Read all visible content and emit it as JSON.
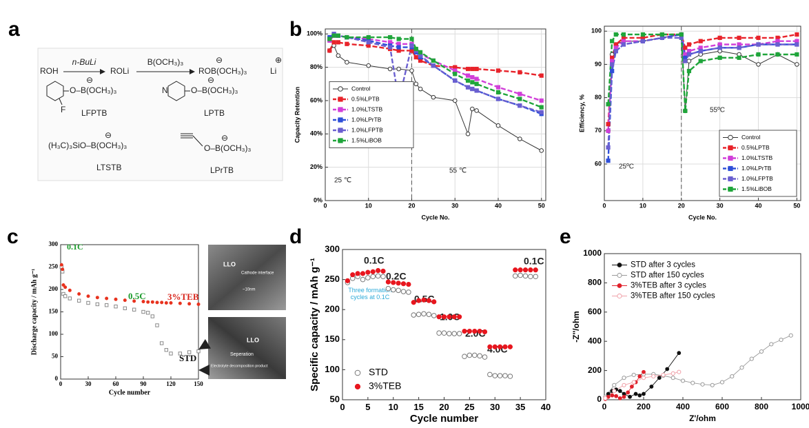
{
  "panel_labels": [
    "a",
    "b",
    "c",
    "d",
    "e"
  ],
  "scheme": {
    "reaction": [
      "ROH",
      "n-BuLi",
      "ROLi",
      "B(OCH₃)₃",
      "ROB(OCH₃)₃",
      "Li"
    ],
    "minus": "⊖",
    "plus": "⊕",
    "ring_atoms": [
      "F",
      "N"
    ],
    "compounds": [
      {
        "formula": "O–B(OCH₃)₃",
        "name": "LFPTB"
      },
      {
        "formula": "O–B(OCH₃)₃",
        "name": "LPTB"
      },
      {
        "formula": "(H₃C)₃SiO–B(OCH₃)₃",
        "name": "LTSTB"
      },
      {
        "formula": "O–B(OCH₃)₃",
        "name": "LPrTB"
      }
    ]
  },
  "tem_images": [
    {
      "labels": [
        "LLO",
        "Cathode interface",
        "~10nm"
      ]
    },
    {
      "labels": [
        "LLO",
        "Seperation",
        "Electrolyte decomposition product"
      ]
    }
  ],
  "chart_data": [
    {
      "type": "line",
      "xlabel": "Cycle No.",
      "ylabel": "Capacity Retention",
      "xlim": [
        0,
        51
      ],
      "ylim": [
        0,
        103
      ],
      "xticks": [
        0,
        10,
        20,
        30,
        40,
        50
      ],
      "yticks": [
        {
          "value": 0,
          "label": "0%"
        },
        {
          "value": 20,
          "label": "20%"
        },
        {
          "value": 40,
          "label": "40%"
        },
        {
          "value": 60,
          "label": "60%"
        },
        {
          "value": 80,
          "label": "80%"
        },
        {
          "value": 100,
          "label": "100%"
        }
      ],
      "grid": true,
      "vline": 20,
      "legend": "center left",
      "annotations": [
        "25 ℃",
        "55 ℃"
      ],
      "x": [
        1,
        2,
        3,
        5,
        10,
        15,
        17,
        20,
        21,
        22,
        25,
        30,
        33,
        34,
        35,
        40,
        45,
        50
      ],
      "series": [
        {
          "name": "Control",
          "color": "#333333",
          "marker": "circle-open",
          "dash": false,
          "values": [
            90,
            93,
            87,
            83,
            81,
            79,
            79,
            78,
            70,
            67,
            62,
            60,
            40,
            55,
            54,
            45,
            37,
            30
          ]
        },
        {
          "name": "0.5%LPTB",
          "color": "#e8232a",
          "marker": "square",
          "dash": true,
          "values": [
            90,
            95,
            95,
            94,
            93,
            91,
            90,
            90,
            86,
            84,
            81,
            80,
            79,
            79,
            79,
            78,
            77,
            75
          ]
        },
        {
          "name": "1.0%LTSTB",
          "color": "#d13fd9",
          "marker": "square",
          "dash": true,
          "values": [
            96,
            99,
            99,
            98,
            97,
            95,
            94,
            94,
            90,
            88,
            84,
            78,
            75,
            74,
            73,
            68,
            64,
            60
          ]
        },
        {
          "name": "1.0%LPrTB",
          "color": "#2f4fd8",
          "marker": "square",
          "dash": true,
          "values": [
            98,
            100,
            99,
            98,
            96,
            93,
            92,
            92,
            89,
            86,
            81,
            72,
            68,
            67,
            66,
            61,
            57,
            52
          ]
        },
        {
          "name": "1.0%LFPTB",
          "color": "#6a5fd0",
          "marker": "square",
          "dash": true,
          "values": [
            97,
            100,
            99,
            98,
            95,
            92,
            60,
            93,
            90,
            87,
            81,
            72,
            68,
            67,
            66,
            61,
            57,
            53
          ]
        },
        {
          "name": "1.5%LiBOB",
          "color": "#1fa53a",
          "marker": "square",
          "dash": true,
          "values": [
            97,
            99,
            99,
            98,
            98,
            98,
            97,
            97,
            91,
            89,
            84,
            76,
            72,
            71,
            70,
            65,
            61,
            56
          ]
        }
      ]
    },
    {
      "type": "line",
      "xlabel": "Cycle No.",
      "ylabel": "Efficiency, %",
      "xlim": [
        0,
        51
      ],
      "ylim": [
        49,
        101.5
      ],
      "xticks": [
        0,
        10,
        20,
        30,
        40,
        50
      ],
      "yticks": [
        60,
        70,
        80,
        90,
        100
      ],
      "grid": true,
      "vline": 20,
      "legend": "lower right",
      "annotations": [
        "25ºC",
        "55ºC"
      ],
      "x": [
        1,
        2,
        3,
        5,
        10,
        15,
        20,
        21,
        22,
        25,
        30,
        35,
        40,
        45,
        50
      ],
      "series": [
        {
          "name": "Control",
          "color": "#333333",
          "marker": "circle-open",
          "dash": false,
          "values": [
            70,
            93,
            96,
            97,
            97,
            98,
            99,
            76,
            91,
            93,
            94,
            93,
            90,
            93,
            90
          ]
        },
        {
          "name": "0.5%LPTB",
          "color": "#e8232a",
          "marker": "square",
          "dash": true,
          "values": [
            72,
            92,
            96,
            98,
            98,
            99,
            99,
            95,
            96,
            97,
            98,
            98,
            98,
            98,
            99
          ]
        },
        {
          "name": "1.0%LTSTB",
          "color": "#d13fd9",
          "marker": "square",
          "dash": true,
          "values": [
            70,
            91,
            95,
            97,
            97,
            98,
            99,
            93,
            94,
            95,
            96,
            96,
            96,
            97,
            97
          ]
        },
        {
          "name": "1.0%LPrTB",
          "color": "#2f4fd8",
          "marker": "square",
          "dash": true,
          "values": [
            61,
            88,
            94,
            96,
            97,
            98,
            99,
            92,
            93,
            94,
            95,
            95,
            96,
            96,
            96
          ]
        },
        {
          "name": "1.0%LFPTB",
          "color": "#6a5fd0",
          "marker": "square",
          "dash": true,
          "values": [
            65,
            90,
            94,
            96,
            97,
            98,
            98,
            91,
            93,
            94,
            95,
            95,
            96,
            96,
            96
          ]
        },
        {
          "name": "1.5%LiBOB",
          "color": "#1fa53a",
          "marker": "square",
          "dash": true,
          "values": [
            78,
            97,
            99,
            99,
            99,
            99,
            99,
            76,
            88,
            91,
            92,
            92,
            93,
            93,
            93
          ]
        }
      ]
    },
    {
      "type": "scatter",
      "xlabel": "Cycle number",
      "ylabel": "Discharge capacity / mAh g⁻¹",
      "xlim": [
        0,
        150
      ],
      "ylim": [
        0,
        300
      ],
      "xticks": [
        0,
        30,
        60,
        90,
        120,
        150
      ],
      "yticks": [
        0,
        50,
        100,
        150,
        200,
        250,
        300
      ],
      "annotations": [
        "0.1C",
        "0.5C",
        "3%TEB",
        "STD"
      ],
      "x": [
        1,
        2,
        3,
        5,
        10,
        20,
        30,
        40,
        50,
        60,
        70,
        80,
        90,
        95,
        100,
        105,
        110,
        115,
        120,
        130,
        140,
        150
      ],
      "series": [
        {
          "name": "STD",
          "color": "#888888",
          "marker": "square-open",
          "values": [
            250,
            240,
            190,
            185,
            180,
            175,
            170,
            167,
            165,
            162,
            158,
            155,
            150,
            148,
            140,
            120,
            80,
            65,
            57,
            57,
            60,
            62
          ]
        },
        {
          "name": "3%TEB",
          "color": "#e8321e",
          "marker": "circle",
          "values": [
            255,
            245,
            210,
            205,
            198,
            190,
            185,
            182,
            180,
            178,
            176,
            174,
            173,
            172,
            172,
            171,
            171,
            170,
            170,
            169,
            168,
            167
          ]
        }
      ]
    },
    {
      "type": "scatter",
      "xlabel": "Cycle number",
      "ylabel": "Specific capacity / mAh g⁻¹",
      "xlim": [
        0,
        40
      ],
      "ylim": [
        50,
        300
      ],
      "xticks": [
        0,
        5,
        10,
        15,
        20,
        25,
        30,
        35,
        40
      ],
      "yticks": [
        50,
        100,
        150,
        200,
        250,
        300
      ],
      "legend": "lower left",
      "annotations": [
        "0.1C",
        "0.2C",
        "0.5C",
        "1.0C",
        "2.0C",
        "4.0C",
        "0.1C",
        "Three formation cycles at 0.1C"
      ],
      "x": [
        1,
        2,
        3,
        4,
        5,
        6,
        7,
        8,
        9,
        10,
        11,
        12,
        13,
        14,
        15,
        16,
        17,
        18,
        19,
        20,
        21,
        22,
        23,
        24,
        25,
        26,
        27,
        28,
        29,
        30,
        31,
        32,
        33,
        34,
        35,
        36,
        37,
        38
      ],
      "series": [
        {
          "name": "STD",
          "color": "#777777",
          "marker": "circle-open",
          "values": [
            245,
            252,
            255,
            250,
            253,
            255,
            256,
            255,
            235,
            233,
            232,
            230,
            229,
            191,
            192,
            193,
            192,
            190,
            161,
            161,
            160,
            160,
            160,
            122,
            124,
            124,
            123,
            121,
            92,
            90,
            90,
            90,
            89,
            256,
            257,
            256,
            255,
            255
          ]
        },
        {
          "name": "3%TEB",
          "color": "#e8161e",
          "marker": "circle",
          "values": [
            248,
            258,
            260,
            260,
            262,
            263,
            265,
            264,
            246,
            245,
            244,
            243,
            242,
            212,
            215,
            216,
            215,
            213,
            188,
            188,
            188,
            188,
            188,
            164,
            164,
            164,
            164,
            163,
            138,
            138,
            138,
            138,
            138,
            266,
            266,
            266,
            266,
            266
          ]
        }
      ]
    },
    {
      "type": "line",
      "xlabel": "Z'/ohm",
      "ylabel": "-Z''/ohm",
      "xlim": [
        0,
        1000
      ],
      "ylim": [
        0,
        1000
      ],
      "xticks": [
        0,
        200,
        400,
        600,
        800,
        1000
      ],
      "yticks": [
        0,
        200,
        400,
        600,
        800,
        1000
      ],
      "legend": "upper left",
      "series": [
        {
          "name": "STD after 3 cycles",
          "color": "#111111",
          "marker": "circle",
          "x": [
            5,
            20,
            40,
            60,
            80,
            100,
            130,
            160,
            180,
            200,
            240,
            280,
            320,
            380
          ],
          "values": [
            10,
            40,
            60,
            70,
            60,
            40,
            20,
            40,
            30,
            40,
            90,
            150,
            210,
            320
          ]
        },
        {
          "name": "STD after 150 cycles",
          "color": "#999999",
          "marker": "circle-open",
          "x": [
            5,
            50,
            100,
            150,
            200,
            250,
            300,
            350,
            400,
            450,
            500,
            550,
            600,
            650,
            700,
            750,
            800,
            850,
            900,
            950
          ],
          "values": [
            20,
            100,
            150,
            170,
            175,
            175,
            165,
            150,
            130,
            115,
            105,
            100,
            120,
            160,
            220,
            280,
            330,
            380,
            410,
            440
          ]
        },
        {
          "name": "3%TEB after 3 cycles",
          "color": "#e0202a",
          "marker": "circle",
          "x": [
            5,
            20,
            40,
            60,
            80,
            100,
            120,
            140,
            160,
            180,
            200
          ],
          "values": [
            5,
            20,
            30,
            25,
            10,
            20,
            50,
            90,
            120,
            160,
            190
          ]
        },
        {
          "name": "3%TEB after 150 cycles",
          "color": "#f0a0a8",
          "marker": "circle-open",
          "x": [
            5,
            50,
            100,
            150,
            200,
            250,
            300,
            350,
            380
          ],
          "values": [
            10,
            60,
            100,
            120,
            150,
            160,
            170,
            180,
            190
          ]
        }
      ]
    }
  ]
}
